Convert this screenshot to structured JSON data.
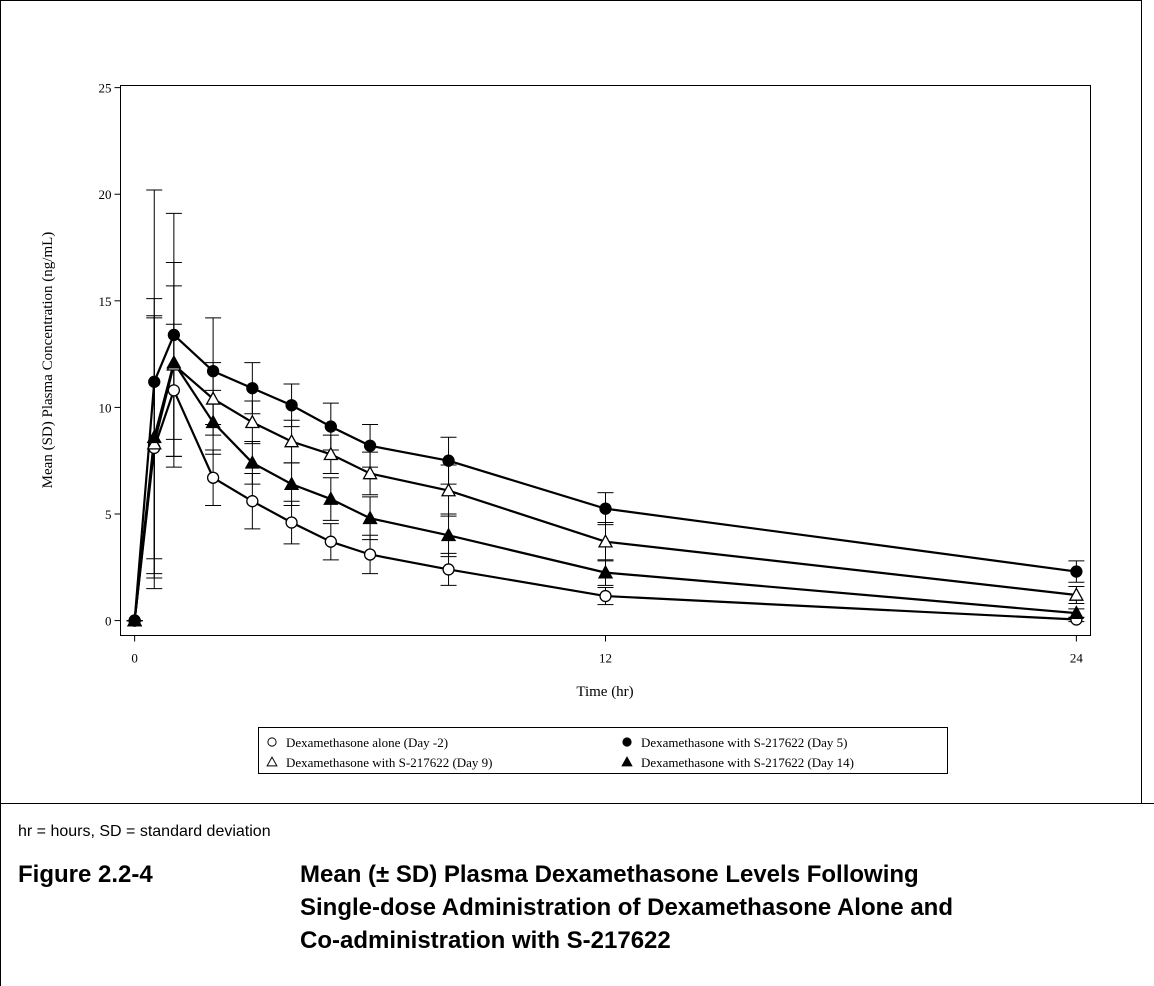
{
  "chart_data": {
    "type": "line",
    "x_label": "Time (hr)",
    "y_label": "Mean (SD) Plasma Concentration (ng/mL)",
    "x": [
      0,
      0.5,
      1,
      2,
      3,
      4,
      5,
      6,
      8,
      12,
      24
    ],
    "xlim": [
      -0.36,
      24.36
    ],
    "xticks": [
      0,
      12,
      24
    ],
    "ylim": [
      -0.7,
      25.1
    ],
    "yticks": [
      0,
      5,
      10,
      15,
      20,
      25
    ],
    "legend_columns": 2,
    "series": [
      {
        "name": "Dexamethasone alone (Day -2)",
        "color": "#000000",
        "marker": "circle-open",
        "values": [
          0,
          8.1,
          10.8,
          6.7,
          5.6,
          4.6,
          3.7,
          3.1,
          2.4,
          1.15,
          0.05
        ],
        "errors": [
          0,
          6.1,
          3.1,
          1.3,
          1.3,
          1.0,
          0.85,
          0.9,
          0.75,
          0.4,
          0.1
        ]
      },
      {
        "name": "Dexamethasone with S-217622 (Day 5)",
        "color": "#000000",
        "marker": "circle-filled",
        "values": [
          0,
          11.2,
          13.4,
          11.7,
          10.9,
          10.1,
          9.1,
          8.2,
          7.5,
          5.25,
          2.3
        ],
        "errors": [
          0,
          9.0,
          5.7,
          2.5,
          1.2,
          1.0,
          1.1,
          1.0,
          1.1,
          0.75,
          0.5
        ]
      },
      {
        "name": "Dexamethasone with S-217622 (Day 9)",
        "color": "#000000",
        "marker": "triangle-open",
        "values": [
          0,
          8.3,
          12.0,
          10.4,
          9.3,
          8.4,
          7.8,
          6.9,
          6.1,
          3.7,
          1.2
        ],
        "errors": [
          0,
          6.8,
          4.8,
          1.7,
          1.0,
          1.0,
          0.9,
          1.0,
          1.2,
          0.9,
          0.4
        ]
      },
      {
        "name": "Dexamethasone with S-217622 (Day 14)",
        "color": "#000000",
        "marker": "triangle-filled",
        "values": [
          0,
          8.6,
          12.1,
          9.3,
          7.4,
          6.4,
          5.7,
          4.8,
          4.0,
          2.25,
          0.35
        ],
        "errors": [
          0,
          5.7,
          3.6,
          1.5,
          1.0,
          1.0,
          1.0,
          1.0,
          1.0,
          0.6,
          0.2
        ]
      }
    ]
  },
  "footnote": "hr = hours, SD = standard deviation",
  "caption": {
    "label": "Figure 2.2-4",
    "lines": [
      "Mean (± SD) Plasma Dexamethasone Levels Following",
      "Single-dose Administration of Dexamethasone Alone and",
      "Co-administration with S-217622"
    ]
  }
}
